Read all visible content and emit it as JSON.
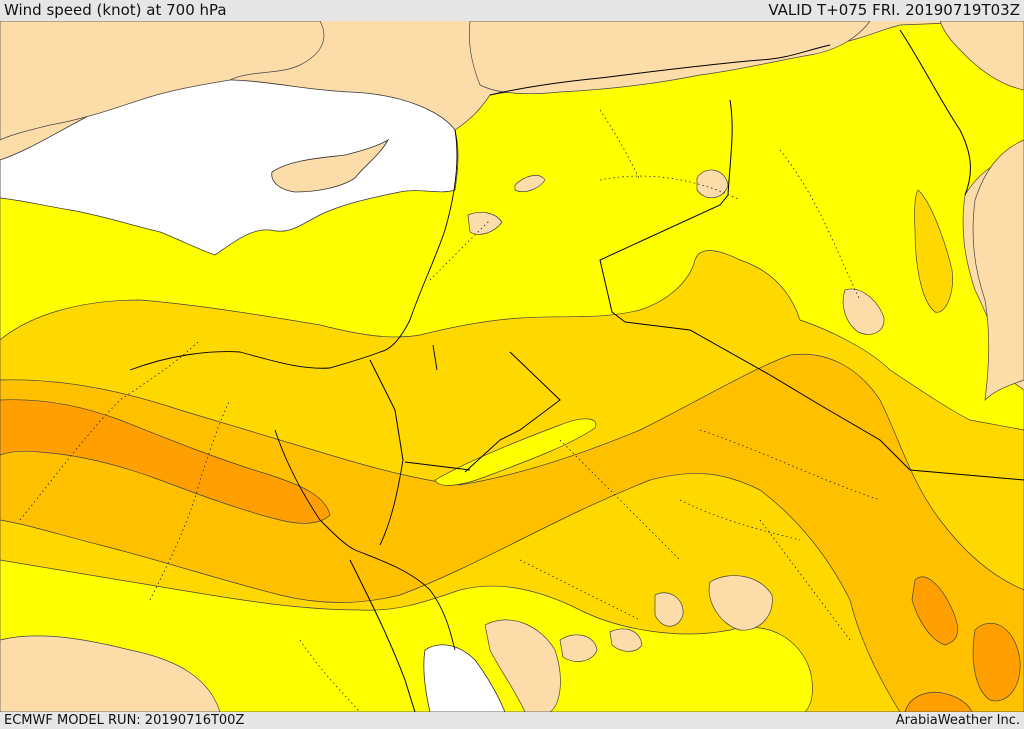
{
  "header": {
    "title": "Wind speed (knot) at 700 hPa",
    "valid_time": "VALID T+075 FRI. 20190719T03Z"
  },
  "footer": {
    "model_run": "ECMWF MODEL RUN: 20190716T00Z",
    "provider": "ArabiaWeather Inc."
  },
  "map": {
    "variable": "wind speed",
    "level": "700 hPa",
    "colors": {
      "sea": "#ffffff",
      "land_low": "#fcdca8",
      "band_yellow": "#ffff00",
      "band_gold": "#ffd800",
      "band_amber": "#ffc000",
      "band_orange": "#ffa000",
      "border": "#000000",
      "contour": "#333333"
    },
    "icons": [
      "coastline",
      "country-border",
      "province-border",
      "wind-speed-contour"
    ]
  }
}
